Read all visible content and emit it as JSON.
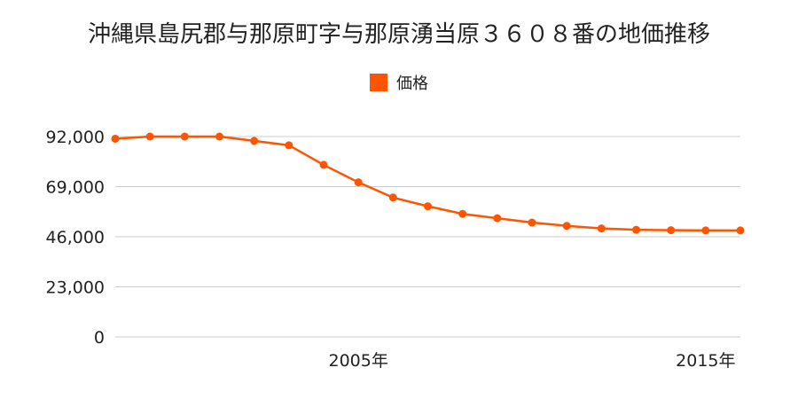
{
  "chart_data": {
    "type": "line",
    "title": "沖縄県島尻郡与那原町字与那原湧当原３６０８番の地価推移",
    "xlabel": "",
    "ylabel": "",
    "x": [
      1998,
      1999,
      2000,
      2001,
      2002,
      2003,
      2004,
      2005,
      2006,
      2007,
      2008,
      2009,
      2010,
      2011,
      2012,
      2013,
      2014,
      2015,
      2016
    ],
    "x_tick_labels": [
      {
        "x": 2005,
        "label": "2005年"
      },
      {
        "x": 2015,
        "label": "2015年"
      }
    ],
    "ylim": [
      0,
      92000
    ],
    "y_ticks": [
      "0",
      "23,000",
      "46,000",
      "69,000",
      "92,000"
    ],
    "y_tick_values": [
      0,
      23000,
      46000,
      69000,
      92000
    ],
    "grid": true,
    "legend": "top-center",
    "series": [
      {
        "name": "価格",
        "color": "#FF5500",
        "values": [
          91000,
          92000,
          92000,
          92000,
          90000,
          88000,
          79000,
          71000,
          64000,
          60000,
          56500,
          54500,
          52500,
          51000,
          49800,
          49200,
          49000,
          48900,
          48900
        ]
      }
    ]
  }
}
